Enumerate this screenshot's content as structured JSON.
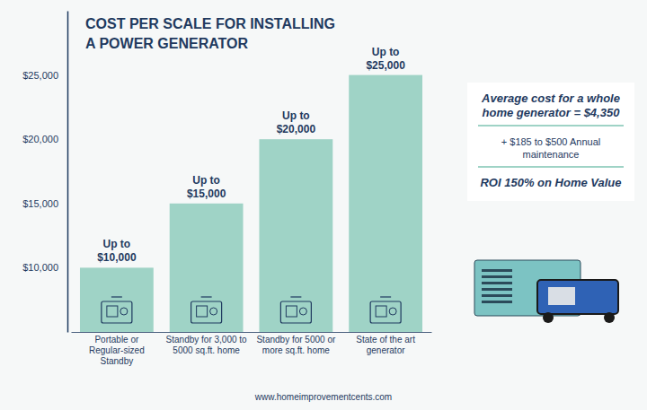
{
  "chart_data": {
    "type": "bar",
    "title": "COST PER SCALE FOR INSTALLING A POWER GENERATOR",
    "categories": [
      "Portable or Regular-sized Standby",
      "Standby for 3,000 to 5000 sq.ft. home",
      "Standby for 5000 or more sq.ft. home",
      "State of the art generator"
    ],
    "values": [
      10000,
      15000,
      20000,
      25000
    ],
    "value_labels": [
      "Up to $10,000",
      "Up to $15,000",
      "Up to $20,000",
      "Up to $25,000"
    ],
    "color": "#9fd3c6",
    "ylim": [
      5000,
      30000
    ],
    "yticks": [
      {
        "value": 10000,
        "label": "$10,000"
      },
      {
        "value": 15000,
        "label": "$15,000"
      },
      {
        "value": 20000,
        "label": "$20,000"
      },
      {
        "value": 25000,
        "label": "$25,000"
      }
    ],
    "grid": false,
    "data_labels": true,
    "annotations": [
      "Average cost for a whole home generator = $4,350",
      "+ $185 to $500 Annual maintenance",
      "ROI 150% on Home Value"
    ],
    "source": "www.homeimprovementcents.com"
  }
}
